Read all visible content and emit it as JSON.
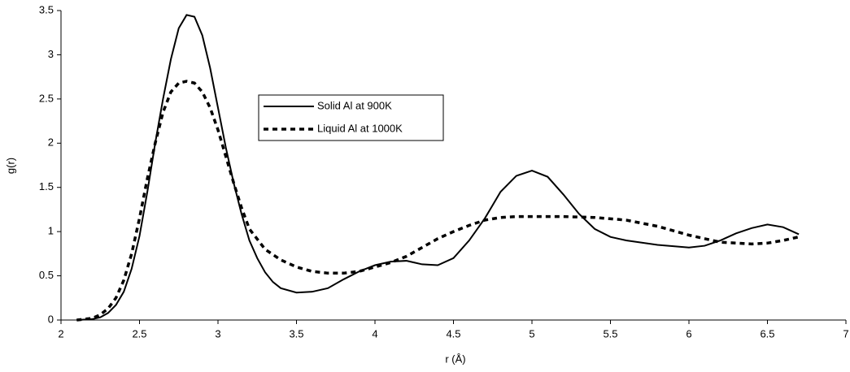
{
  "chart_data": {
    "type": "line",
    "xlabel": "r (Å)",
    "ylabel": "g(r)",
    "xlim": [
      2,
      7
    ],
    "xticks": [
      2,
      2.5,
      3,
      3.5,
      4,
      4.5,
      5,
      5.5,
      6,
      6.5,
      7
    ],
    "ylim": [
      0,
      3.5
    ],
    "yticks": [
      0,
      0.5,
      1,
      1.5,
      2,
      2.5,
      3,
      3.5
    ],
    "grid": false,
    "legend": "center",
    "series": [
      {
        "name": "Solid Al at 900K",
        "color": "#000000",
        "style": "solid",
        "x": [
          2.1,
          2.2,
          2.25,
          2.3,
          2.35,
          2.4,
          2.45,
          2.5,
          2.55,
          2.6,
          2.65,
          2.7,
          2.75,
          2.8,
          2.85,
          2.9,
          2.95,
          3.0,
          3.05,
          3.1,
          3.15,
          3.2,
          3.25,
          3.3,
          3.35,
          3.4,
          3.5,
          3.6,
          3.7,
          3.8,
          3.9,
          4.0,
          4.1,
          4.2,
          4.3,
          4.4,
          4.5,
          4.6,
          4.7,
          4.8,
          4.9,
          5.0,
          5.1,
          5.2,
          5.3,
          5.4,
          5.5,
          5.6,
          5.8,
          6.0,
          6.1,
          6.2,
          6.3,
          6.4,
          6.5,
          6.6,
          6.7
        ],
        "values": [
          0,
          0.01,
          0.03,
          0.08,
          0.17,
          0.32,
          0.58,
          0.95,
          1.45,
          2.0,
          2.5,
          2.95,
          3.3,
          3.45,
          3.43,
          3.22,
          2.85,
          2.4,
          1.95,
          1.55,
          1.2,
          0.9,
          0.7,
          0.54,
          0.43,
          0.36,
          0.31,
          0.32,
          0.36,
          0.46,
          0.55,
          0.62,
          0.66,
          0.67,
          0.63,
          0.62,
          0.7,
          0.9,
          1.15,
          1.45,
          1.63,
          1.69,
          1.62,
          1.42,
          1.2,
          1.03,
          0.94,
          0.9,
          0.85,
          0.82,
          0.84,
          0.9,
          0.98,
          1.04,
          1.08,
          1.05,
          0.97
        ]
      },
      {
        "name": "Liquid Al at 1000K",
        "color": "#000000",
        "style": "dashed",
        "x": [
          2.1,
          2.2,
          2.25,
          2.3,
          2.35,
          2.4,
          2.45,
          2.5,
          2.55,
          2.6,
          2.65,
          2.7,
          2.75,
          2.8,
          2.85,
          2.9,
          2.95,
          3.0,
          3.05,
          3.1,
          3.15,
          3.2,
          3.3,
          3.4,
          3.5,
          3.6,
          3.7,
          3.8,
          3.9,
          4.0,
          4.1,
          4.2,
          4.3,
          4.4,
          4.5,
          4.6,
          4.7,
          4.8,
          4.9,
          5.0,
          5.2,
          5.4,
          5.6,
          5.8,
          6.0,
          6.2,
          6.4,
          6.5,
          6.6,
          6.7
        ],
        "values": [
          0,
          0.02,
          0.06,
          0.13,
          0.25,
          0.45,
          0.75,
          1.15,
          1.6,
          2.0,
          2.35,
          2.58,
          2.68,
          2.7,
          2.68,
          2.58,
          2.4,
          2.15,
          1.85,
          1.55,
          1.27,
          1.03,
          0.8,
          0.68,
          0.6,
          0.55,
          0.53,
          0.53,
          0.55,
          0.6,
          0.65,
          0.72,
          0.82,
          0.92,
          1.0,
          1.07,
          1.13,
          1.16,
          1.17,
          1.17,
          1.17,
          1.16,
          1.13,
          1.06,
          0.96,
          0.88,
          0.86,
          0.87,
          0.9,
          0.94
        ]
      }
    ]
  }
}
